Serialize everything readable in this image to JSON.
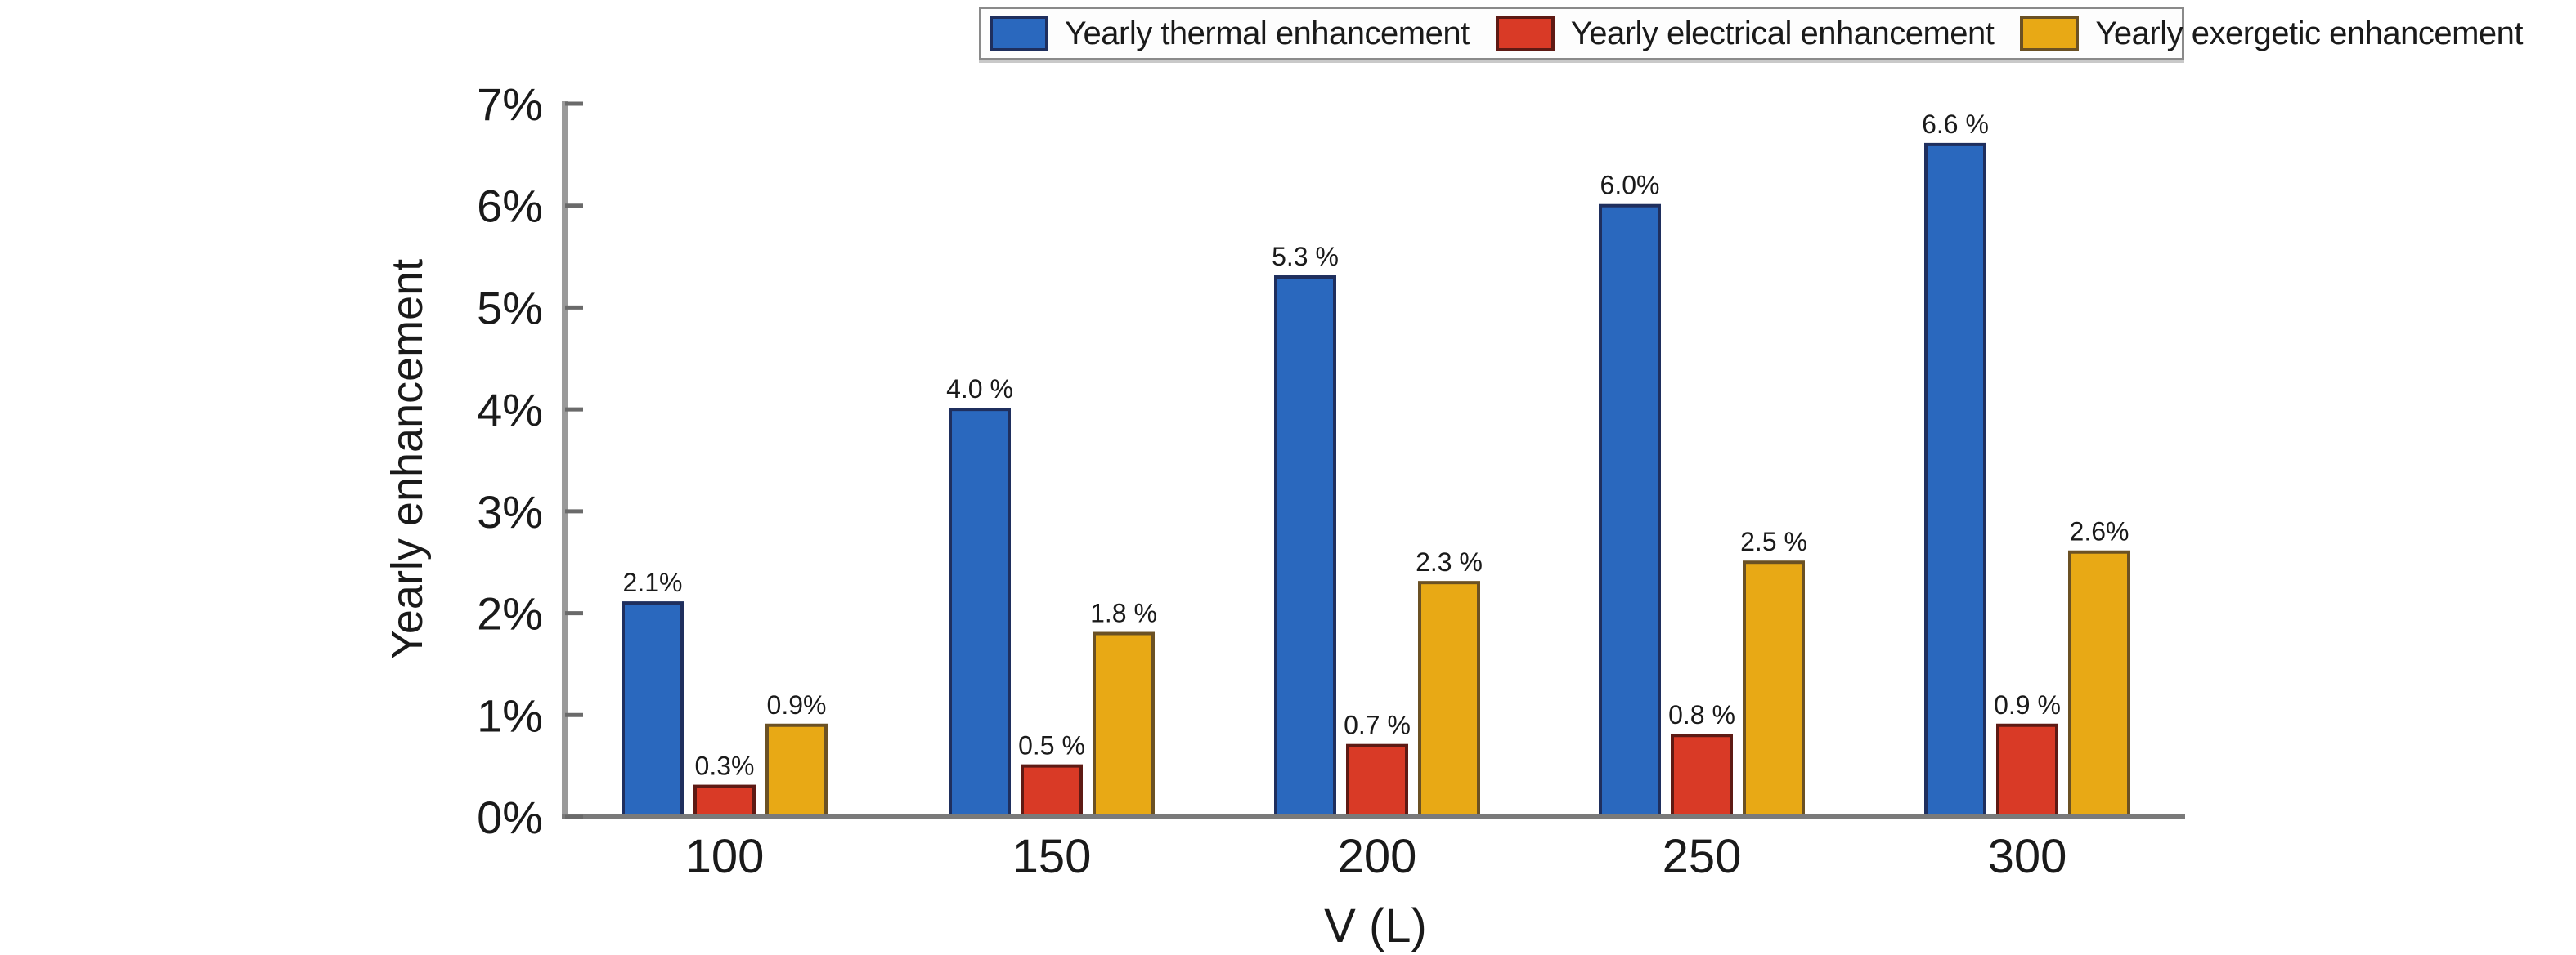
{
  "chart_data": {
    "type": "bar",
    "title": "",
    "xlabel": "V (L)",
    "ylabel": "Yearly enhancement",
    "categories": [
      "100",
      "150",
      "200",
      "250",
      "300"
    ],
    "ylim": [
      0,
      7
    ],
    "yticks": [
      0,
      1,
      2,
      3,
      4,
      5,
      6,
      7
    ],
    "ytick_labels": [
      "0%",
      "1%",
      "2%",
      "3%",
      "4%",
      "5%",
      "6%",
      "7%"
    ],
    "grid": false,
    "legend_position": "top",
    "series": [
      {
        "name": "Yearly thermal enhancement",
        "color": "#2a68be",
        "edge_color": "#1f2f5e",
        "values": [
          2.1,
          4.0,
          5.3,
          6.0,
          6.6
        ],
        "labels": [
          "2.1%",
          "4.0 %",
          "5.3 %",
          "6.0%",
          "6.6 %"
        ]
      },
      {
        "name": "Yearly electrical enhancement",
        "color": "#d93a26",
        "edge_color": "#5e1a14",
        "values": [
          0.3,
          0.5,
          0.7,
          0.8,
          0.9
        ],
        "labels": [
          "0.3%",
          "0.5 %",
          "0.7 %",
          "0.8 %",
          "0.9 %"
        ]
      },
      {
        "name": "Yearly exergetic enhancement",
        "color": "#e8a915",
        "edge_color": "#6b5124",
        "values": [
          0.9,
          1.8,
          2.3,
          2.5,
          2.6
        ],
        "labels": [
          "0.9%",
          "1.8 %",
          "2.3 %",
          "2.5 %",
          "2.6%"
        ]
      }
    ]
  }
}
